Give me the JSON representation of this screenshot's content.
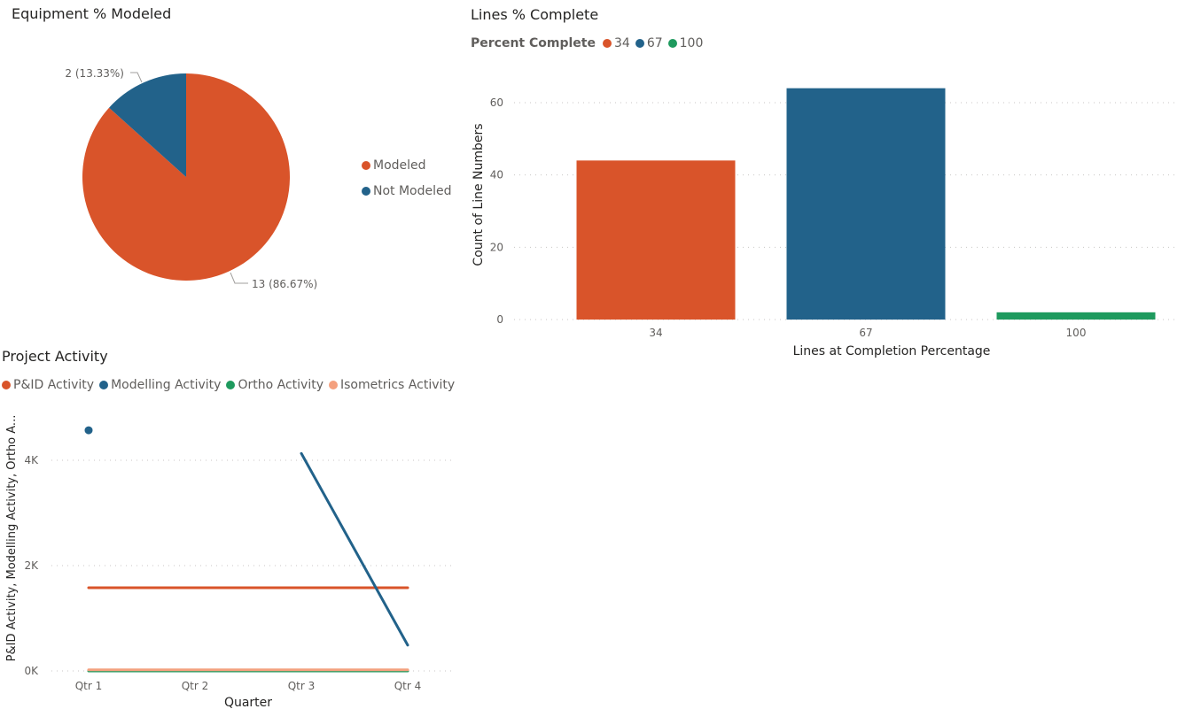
{
  "colors": {
    "orange": "#D9542A",
    "blue": "#22628A",
    "green": "#1E9A5E",
    "salmon": "#F4A07E",
    "grid": "#c8c6c4",
    "text": "#605e5c",
    "title": "#252423"
  },
  "chart_data": [
    {
      "type": "pie",
      "title": "Equipment % Modeled",
      "categories": [
        "Modeled",
        "Not Modeled"
      ],
      "values": [
        13,
        2
      ],
      "labels": [
        "13 (86.67%)",
        "2 (13.33%)"
      ],
      "legend": "right",
      "legend_entries": [
        "Modeled",
        "Not Modeled"
      ]
    },
    {
      "type": "bar",
      "title": "Lines % Complete",
      "legend_title": "Percent Complete",
      "legend_entries": [
        "34",
        "67",
        "100"
      ],
      "legend": "top-left",
      "categories": [
        "34",
        "67",
        "100"
      ],
      "values": [
        44,
        64,
        2
      ],
      "xlabel": "Lines at Completion Percentage",
      "ylabel": "Count of Line Numbers",
      "ylim": [
        0,
        65
      ],
      "yticks": [
        "0",
        "20",
        "40",
        "60"
      ],
      "ytick_values": [
        0,
        20,
        40,
        60
      ],
      "grid": true
    },
    {
      "type": "line",
      "title": "Project Activity",
      "legend": "top-left",
      "legend_entries": [
        "P&ID Activity",
        "Modelling Activity",
        "Ortho Activity",
        "Isometrics Activity"
      ],
      "categories": [
        "Qtr 1",
        "Qtr 2",
        "Qtr 3",
        "Qtr 4"
      ],
      "series": [
        {
          "name": "P&ID Activity",
          "values": [
            1580,
            1580,
            1580,
            1580
          ]
        },
        {
          "name": "Modelling Activity",
          "values": [
            4570,
            null,
            4130,
            490
          ]
        },
        {
          "name": "Ortho Activity",
          "values": [
            0,
            0,
            0,
            0
          ]
        },
        {
          "name": "Isometrics Activity",
          "values": [
            20,
            20,
            20,
            20
          ]
        }
      ],
      "xlabel": "Quarter",
      "ylabel": "P&ID Activity, Modelling Activity, Ortho A...",
      "ylim": [
        0,
        5000
      ],
      "yticks": [
        "0K",
        "2K",
        "4K"
      ],
      "ytick_values": [
        0,
        2000,
        4000
      ],
      "grid": true
    }
  ]
}
